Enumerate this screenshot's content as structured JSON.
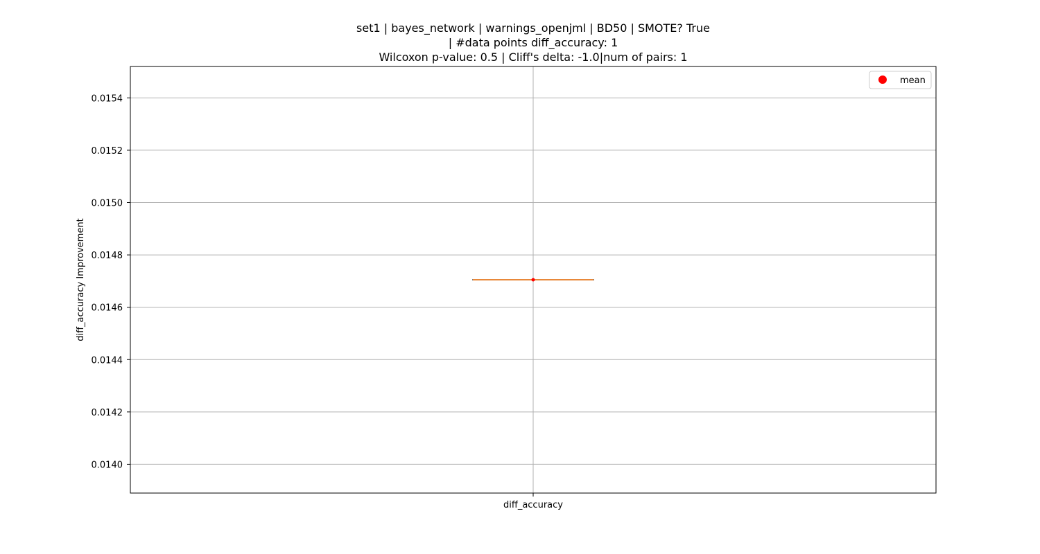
{
  "chart_data": {
    "type": "box",
    "title_lines": [
      "set1 | bayes_network | warnings_openjml | BD50 | SMOTE? True",
      "| #data points diff_accuracy: 1",
      "Wilcoxon p-value: 0.5 | Cliff's delta: -1.0|num of pairs: 1"
    ],
    "xlabel": "",
    "ylabel": "diff_accuracy Improvement",
    "categories": [
      "diff_accuracy"
    ],
    "ylim": [
      0.01389,
      0.01552
    ],
    "yticks": [
      0.014,
      0.0142,
      0.0144,
      0.0146,
      0.0148,
      0.015,
      0.0152,
      0.0154
    ],
    "ytick_labels": [
      "0.0140",
      "0.0142",
      "0.0144",
      "0.0146",
      "0.0148",
      "0.0150",
      "0.0152",
      "0.0154"
    ],
    "boxes": [
      {
        "category": "diff_accuracy",
        "min": 0.014705,
        "q1": 0.014705,
        "median": 0.014705,
        "q3": 0.014705,
        "max": 0.014705,
        "mean": 0.014705
      }
    ],
    "grid": true,
    "legend": {
      "placement": "top-right",
      "entries": [
        {
          "label": "mean",
          "color": "#ff0000",
          "marker": "circle"
        }
      ]
    },
    "colors": {
      "median": "#e8883a",
      "mean": "#ff0000",
      "box": "#000000",
      "grid": "#b0b0b0"
    }
  }
}
